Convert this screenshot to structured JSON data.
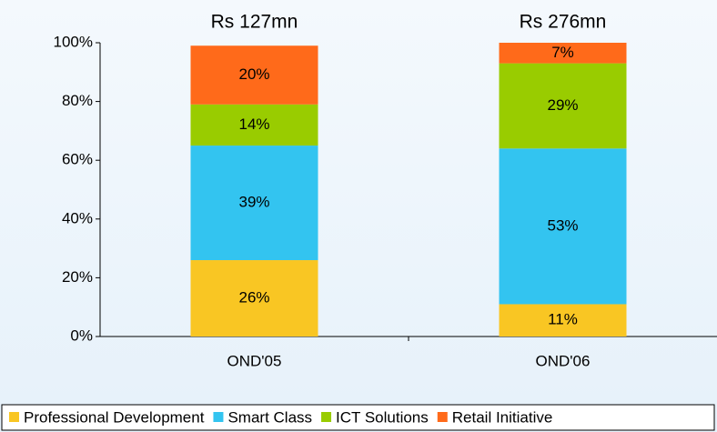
{
  "chart_data": {
    "type": "stacked_bar",
    "categories": [
      "OND'05",
      "OND'06"
    ],
    "annotations": [
      "Rs 127mn",
      "Rs 276mn"
    ],
    "series": [
      {
        "name": "Professional Development",
        "color": "#f9c623",
        "values": [
          26,
          11
        ],
        "value_labels": [
          "26%",
          "11%"
        ]
      },
      {
        "name": "Smart Class",
        "color": "#33c4f0",
        "values": [
          39,
          53
        ],
        "value_labels": [
          "39%",
          "53%"
        ]
      },
      {
        "name": "ICT Solutions",
        "color": "#99cc00",
        "values": [
          14,
          29
        ],
        "value_labels": [
          "14%",
          "29%"
        ]
      },
      {
        "name": "Retail Initiative",
        "color": "#ff6a1a",
        "values": [
          20,
          7
        ],
        "value_labels": [
          "20%",
          "7%"
        ]
      }
    ],
    "ylim": [
      0,
      100
    ],
    "yticks": [
      {
        "value": 0,
        "label": "0%"
      },
      {
        "value": 20,
        "label": "20%"
      },
      {
        "value": 40,
        "label": "40%"
      },
      {
        "value": 60,
        "label": "60%"
      },
      {
        "value": 80,
        "label": "80%"
      },
      {
        "value": 100,
        "label": "100%"
      }
    ],
    "legend": "bottom"
  }
}
